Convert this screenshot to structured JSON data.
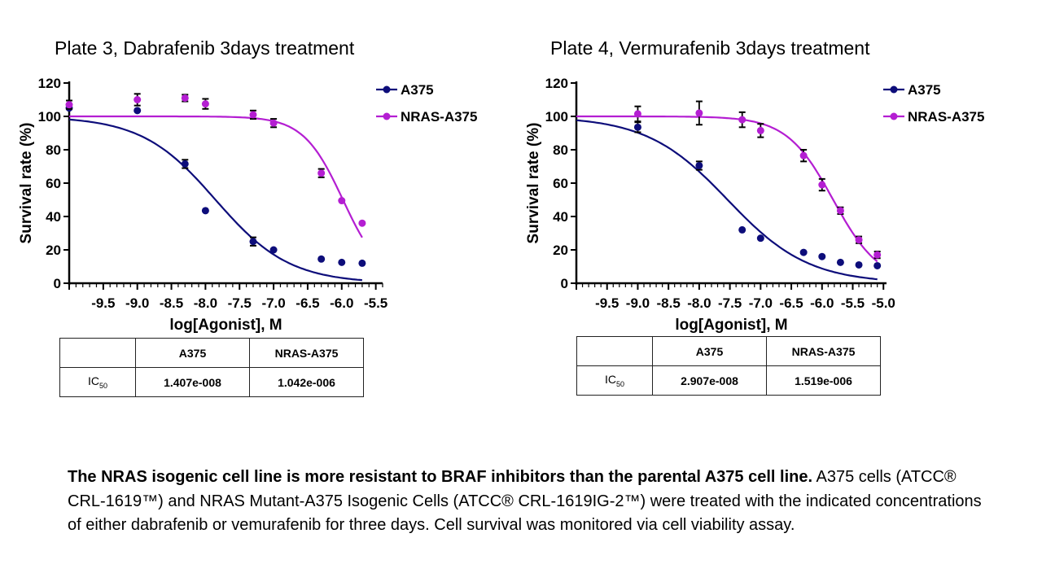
{
  "chart_data": [
    {
      "type": "scatter",
      "title": "Plate 3, Dabrafenib 3days treatment",
      "xlabel": "log[Agonist], M",
      "ylabel": "Survival rate (%)",
      "xlim": [
        -10.0,
        -5.4
      ],
      "ylim": [
        0,
        120
      ],
      "xticks": [
        -9.5,
        -9.0,
        -8.5,
        -8.0,
        -7.5,
        -7.0,
        -6.5,
        -6.0,
        -5.5
      ],
      "xtick_labels": [
        "-9.5",
        "-9.0",
        "-8.5",
        "-8.0",
        "-7.5",
        "-7.0",
        "-6.5",
        "-6.0",
        "-5.5"
      ],
      "yticks": [
        0,
        20,
        40,
        60,
        80,
        100,
        120
      ],
      "ytick_labels": [
        "0",
        "20",
        "40",
        "60",
        "80",
        "100",
        "120"
      ],
      "legend_position": "top-right",
      "series": [
        {
          "name": "A375",
          "color": "#0d0d7a",
          "points": [
            {
              "x": -10.0,
              "y": 105,
              "err": 0
            },
            {
              "x": -9.0,
              "y": 103.5,
              "err": 0
            },
            {
              "x": -8.3,
              "y": 71.5,
              "err": 2.5
            },
            {
              "x": -8.0,
              "y": 43.5,
              "err": 0
            },
            {
              "x": -7.3,
              "y": 25,
              "err": 2.5
            },
            {
              "x": -7.0,
              "y": 20,
              "err": 0
            },
            {
              "x": -6.3,
              "y": 14.5,
              "err": 0
            },
            {
              "x": -6.0,
              "y": 12.5,
              "err": 0
            },
            {
              "x": -5.7,
              "y": 12,
              "err": 0
            }
          ],
          "fit": {
            "top": 100,
            "bottom": 0,
            "logIC50": -7.852,
            "hill": -0.8,
            "x_range": [
              -10.0,
              -5.7
            ]
          }
        },
        {
          "name": "NRAS-A375",
          "color": "#b41ed2",
          "points": [
            {
              "x": -10.0,
              "y": 107,
              "err": 2.5
            },
            {
              "x": -9.0,
              "y": 110,
              "err": 3.5
            },
            {
              "x": -8.3,
              "y": 111,
              "err": 2.0
            },
            {
              "x": -8.0,
              "y": 107.5,
              "err": 3.0
            },
            {
              "x": -7.3,
              "y": 101,
              "err": 2.5
            },
            {
              "x": -7.0,
              "y": 96,
              "err": 2.5
            },
            {
              "x": -6.3,
              "y": 66,
              "err": 2.5
            },
            {
              "x": -6.0,
              "y": 49.5,
              "err": 0
            },
            {
              "x": -5.7,
              "y": 36,
              "err": 0
            }
          ],
          "fit": {
            "top": 100,
            "bottom": 0,
            "logIC50": -5.982,
            "hill": -1.5,
            "x_range": [
              -10.0,
              -5.7
            ]
          }
        }
      ]
    },
    {
      "type": "scatter",
      "title": "Plate 4, Vermurafenib 3days treatment",
      "xlabel": "log[Agonist], M",
      "ylabel": "Survival rate (%)",
      "xlim": [
        -10.0,
        -4.95
      ],
      "ylim": [
        0,
        120
      ],
      "xticks": [
        -9.5,
        -9.0,
        -8.5,
        -8.0,
        -7.5,
        -7.0,
        -6.5,
        -6.0,
        -5.5,
        -5.0
      ],
      "xtick_labels": [
        "-9.5",
        "-9.0",
        "-8.5",
        "-8.0",
        "-7.5",
        "-7.0",
        "-6.5",
        "-6.0",
        "-5.5",
        "-5.0"
      ],
      "yticks": [
        0,
        20,
        40,
        60,
        80,
        100,
        120
      ],
      "ytick_labels": [
        "0",
        "20",
        "40",
        "60",
        "80",
        "100",
        "120"
      ],
      "legend_position": "top-right",
      "series": [
        {
          "name": "A375",
          "color": "#0d0d7a",
          "points": [
            {
              "x": -9.0,
              "y": 93.5,
              "err": 3.0
            },
            {
              "x": -8.0,
              "y": 70.5,
              "err": 2.5
            },
            {
              "x": -7.3,
              "y": 32,
              "err": 0
            },
            {
              "x": -7.0,
              "y": 27,
              "err": 0
            },
            {
              "x": -6.3,
              "y": 18.5,
              "err": 0
            },
            {
              "x": -6.0,
              "y": 16,
              "err": 0
            },
            {
              "x": -5.7,
              "y": 12.5,
              "err": 0
            },
            {
              "x": -5.4,
              "y": 11,
              "err": 0
            },
            {
              "x": -5.1,
              "y": 10.5,
              "err": 0
            }
          ],
          "fit": {
            "top": 100,
            "bottom": 0,
            "logIC50": -7.537,
            "hill": -0.66,
            "x_range": [
              -10.0,
              -5.1
            ]
          }
        },
        {
          "name": "NRAS-A375",
          "color": "#b41ed2",
          "points": [
            {
              "x": -9.0,
              "y": 101.5,
              "err": 4.5
            },
            {
              "x": -8.0,
              "y": 102,
              "err": 7.0
            },
            {
              "x": -7.3,
              "y": 98,
              "err": 4.5
            },
            {
              "x": -7.0,
              "y": 91.5,
              "err": 4.0
            },
            {
              "x": -6.3,
              "y": 76.5,
              "err": 3.5
            },
            {
              "x": -6.0,
              "y": 59,
              "err": 3.5
            },
            {
              "x": -5.7,
              "y": 43.5,
              "err": 2.0
            },
            {
              "x": -5.4,
              "y": 26,
              "err": 2.0
            },
            {
              "x": -5.1,
              "y": 17,
              "err": 2.0
            }
          ],
          "fit": {
            "top": 100,
            "bottom": 0,
            "logIC50": -5.818,
            "hill": -1.15,
            "x_range": [
              -10.0,
              -5.1
            ]
          }
        }
      ]
    }
  ],
  "ic50_tables": [
    {
      "headers": [
        "",
        "A375",
        "NRAS-A375"
      ],
      "row_label_main": "IC",
      "row_label_sub": "50",
      "values": [
        "1.407e-008",
        "1.042e-006"
      ]
    },
    {
      "headers": [
        "",
        "A375",
        "NRAS-A375"
      ],
      "row_label_main": "IC",
      "row_label_sub": "50",
      "values": [
        "2.907e-008",
        "1.519e-006"
      ]
    }
  ],
  "caption": {
    "bold": "The NRAS isogenic cell line is more resistant to BRAF inhibitors than the parental A375 cell line.",
    "text": " A375 cells (ATCC® CRL-1619™) and NRAS Mutant-A375 Isogenic Cells (ATCC® CRL-1619IG-2™) were treated with the indicated concentrations of either dabrafenib or vemurafenib for three days. Cell survival was monitored via cell viability assay."
  }
}
